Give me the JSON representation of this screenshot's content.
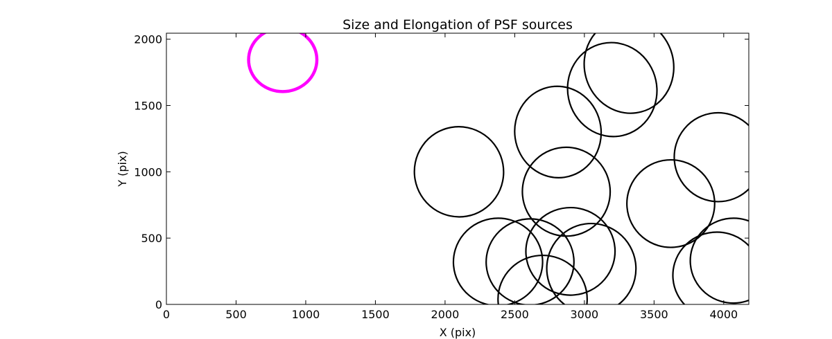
{
  "chart_data": {
    "type": "scatter",
    "title": "Size and Elongation of PSF sources",
    "xlabel": "X (pix)",
    "ylabel": "Y (pix)",
    "xlim": [
      0,
      4180
    ],
    "ylim": [
      0,
      2045
    ],
    "xticks": [
      0,
      500,
      1000,
      1500,
      2000,
      2500,
      3000,
      3500,
      4000
    ],
    "yticks": [
      0,
      500,
      1000,
      1500,
      2000
    ],
    "grid": false,
    "colors": {
      "reference": "#ff00ff",
      "sources": "#000000"
    },
    "reference": {
      "x": 835,
      "y": 1845,
      "rx": 245,
      "ry": 240,
      "angle": 0
    },
    "ellipses": [
      {
        "x": 2100,
        "y": 1000,
        "rx": 320,
        "ry": 340,
        "angle": -10
      },
      {
        "x": 2810,
        "y": 1300,
        "rx": 310,
        "ry": 345,
        "angle": -8
      },
      {
        "x": 3200,
        "y": 1620,
        "rx": 320,
        "ry": 355,
        "angle": -12
      },
      {
        "x": 3320,
        "y": 1800,
        "rx": 320,
        "ry": 360,
        "angle": -15
      },
      {
        "x": 2870,
        "y": 850,
        "rx": 315,
        "ry": 335,
        "angle": -5
      },
      {
        "x": 3620,
        "y": 760,
        "rx": 315,
        "ry": 330,
        "angle": -5
      },
      {
        "x": 3960,
        "y": 1110,
        "rx": 315,
        "ry": 335,
        "angle": -5
      },
      {
        "x": 2380,
        "y": 320,
        "rx": 320,
        "ry": 330,
        "angle": -5
      },
      {
        "x": 2610,
        "y": 320,
        "rx": 315,
        "ry": 325,
        "angle": -5
      },
      {
        "x": 2900,
        "y": 400,
        "rx": 320,
        "ry": 330,
        "angle": -5
      },
      {
        "x": 3050,
        "y": 270,
        "rx": 320,
        "ry": 340,
        "angle": -8
      },
      {
        "x": 2700,
        "y": 40,
        "rx": 320,
        "ry": 330,
        "angle": 0
      },
      {
        "x": 3950,
        "y": 220,
        "rx": 315,
        "ry": 325,
        "angle": -5
      },
      {
        "x": 4070,
        "y": 330,
        "rx": 310,
        "ry": 320,
        "angle": -5
      }
    ]
  }
}
